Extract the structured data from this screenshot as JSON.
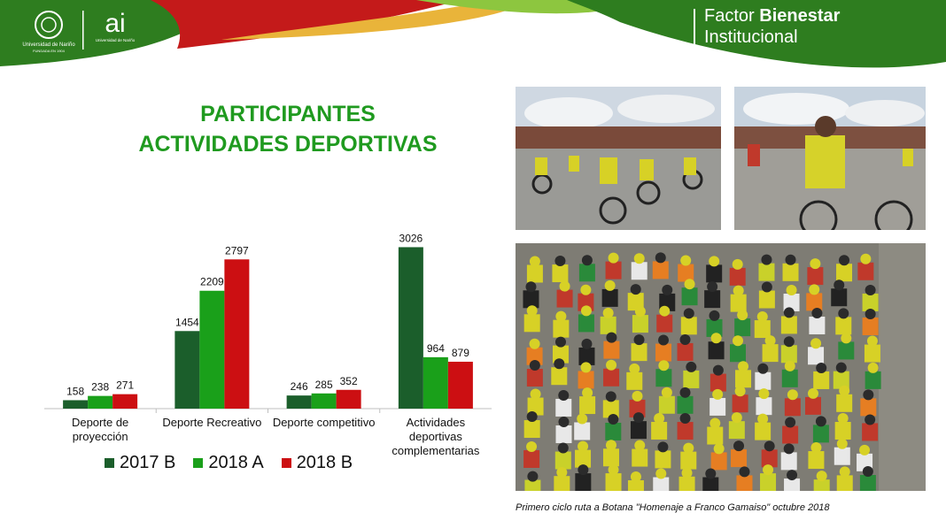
{
  "header": {
    "logo_university_name": "Universidad de Nariño",
    "logo_university_sub": "FUNDADA EN 1904",
    "logo_ai": "ai",
    "logo_ai_sub": "Universidad de Nariño",
    "factor_line1_prefix": "Factor ",
    "factor_line1_bold": "Bienestar",
    "factor_line2": "Institucional"
  },
  "chart_title_line1": "PARTICIPANTES",
  "chart_title_line2": "ACTIVIDADES DEPORTIVAS",
  "colors": {
    "s2017B": "#1b5e2b",
    "s2018A": "#1aa01a",
    "s2018B": "#cc0f12",
    "title": "#1f9a1f"
  },
  "chart_data": {
    "type": "bar",
    "title": "PARTICIPANTES ACTIVIDADES DEPORTIVAS",
    "categories": [
      [
        "Deporte de",
        "proyección"
      ],
      [
        "Deporte Recreativo"
      ],
      [
        "Deporte competitivo"
      ],
      [
        "Actividades",
        "deportivas",
        "complementarias"
      ]
    ],
    "series": [
      {
        "name": "2017 B",
        "values": [
          158,
          1454,
          246,
          3026
        ]
      },
      {
        "name": "2018 A",
        "values": [
          238,
          2209,
          285,
          964
        ]
      },
      {
        "name": "2018 B",
        "values": [
          271,
          2797,
          352,
          879
        ]
      }
    ],
    "ylim": [
      0,
      3500
    ],
    "grid": false,
    "legend": "bottom"
  },
  "photos": {
    "top_left_icon": "cyclists-photo",
    "top_right_icon": "cyclist-photo",
    "bottom_icon": "crowd-cyclists-photo"
  },
  "caption": "Primero ciclo ruta a Botana \"Homenaje a Franco Gamaiso\" octubre 2018"
}
